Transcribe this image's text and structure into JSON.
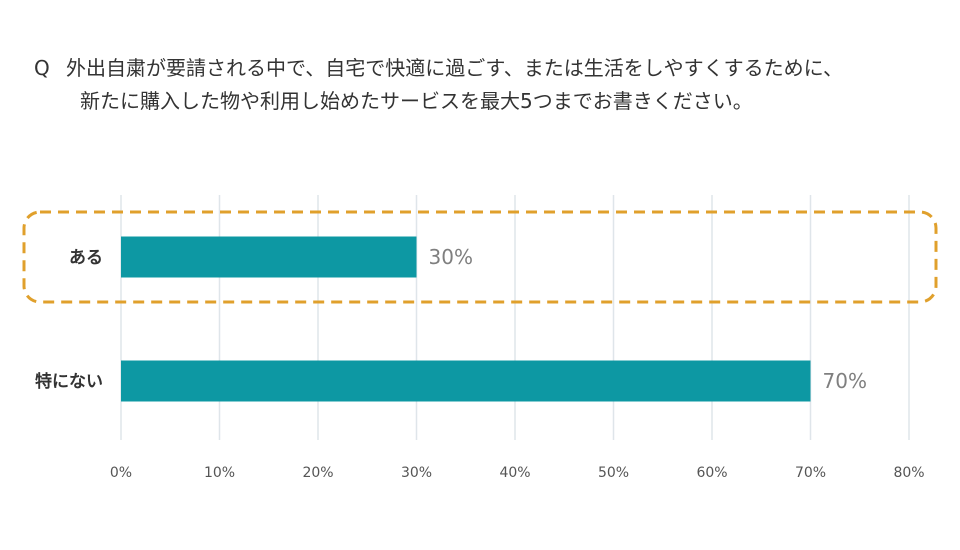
{
  "question": {
    "mark": "Q",
    "line1": "外出自粛が要請される中で、自宅で快適に過ごす、または生活をしやすくするために、",
    "line2": "新たに購入した物や利用し始めたサービスを最大5つまでお書きください。"
  },
  "chart_data": {
    "type": "bar",
    "orientation": "horizontal",
    "categories": [
      "ある",
      "特にない"
    ],
    "values": [
      30,
      70
    ],
    "value_labels": [
      "30%",
      "70%"
    ],
    "xlim": [
      0,
      80
    ],
    "ticks": [
      "0%",
      "10%",
      "20%",
      "30%",
      "40%",
      "50%",
      "60%",
      "70%",
      "80%"
    ],
    "grid": "vertical",
    "highlighted_category": "ある"
  },
  "colors": {
    "bar": "#0d98a3",
    "grid": "#dfe5ea",
    "highlight_border": "#e0a02c"
  }
}
